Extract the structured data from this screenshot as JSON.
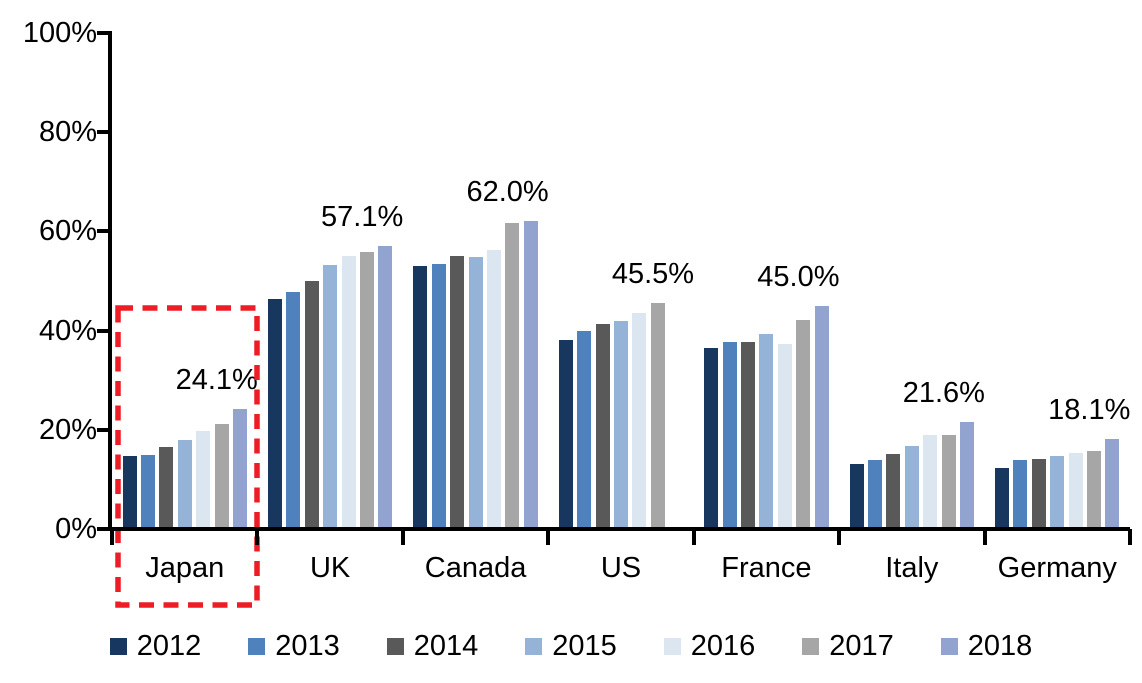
{
  "chart_data": {
    "type": "bar",
    "title": "",
    "xlabel": "",
    "ylabel": "",
    "categories": [
      "Japan",
      "UK",
      "Canada",
      "US",
      "France",
      "Italy",
      "Germany"
    ],
    "series": [
      {
        "name": "2012",
        "color": "#17375E",
        "values": [
          14.7,
          46.3,
          53.1,
          38.2,
          36.5,
          13.1,
          12.4
        ]
      },
      {
        "name": "2013",
        "color": "#4F81BD",
        "values": [
          15.0,
          47.8,
          53.4,
          40.0,
          37.8,
          13.9,
          13.9
        ]
      },
      {
        "name": "2014",
        "color": "#595959",
        "values": [
          16.6,
          50.0,
          55.0,
          41.3,
          37.7,
          15.2,
          14.2
        ]
      },
      {
        "name": "2015",
        "color": "#95B3D7",
        "values": [
          17.9,
          53.2,
          54.8,
          42.0,
          39.3,
          16.7,
          14.7
        ]
      },
      {
        "name": "2016",
        "color": "#DCE6F1",
        "values": [
          19.8,
          55.0,
          56.2,
          43.6,
          37.3,
          18.9,
          15.3
        ]
      },
      {
        "name": "2017",
        "color": "#A6A6A6",
        "values": [
          21.1,
          55.9,
          61.6,
          45.5,
          42.2,
          19.0,
          15.8
        ]
      },
      {
        "name": "2018",
        "color": "#93A3CF",
        "values": [
          24.1,
          57.1,
          62.0,
          null,
          45.0,
          21.6,
          18.1
        ]
      }
    ],
    "data_labels": [
      "24.1%",
      "57.1%",
      "62.0%",
      "45.5%",
      "45.0%",
      "21.6%",
      "18.1%"
    ],
    "ylim": [
      0,
      100
    ],
    "ytick_labels": [
      "0%",
      "20%",
      "40%",
      "60%",
      "80%",
      "100%"
    ],
    "grid": false,
    "legend_position": "bottom",
    "highlight_box": {
      "category": "Japan",
      "style": "red-dashed-rectangle",
      "color": "#EE1C25"
    }
  },
  "colors": {
    "axis": "#000000",
    "background": "#FFFFFF",
    "highlight": "#EE1C25"
  }
}
